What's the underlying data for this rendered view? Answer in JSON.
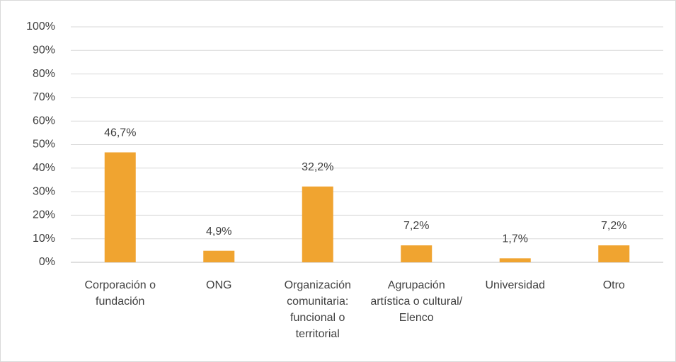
{
  "chart_data": {
    "type": "bar",
    "categories": [
      "Corporación o fundación",
      "ONG",
      "Organización comunitaria: funcional o territorial",
      "Agrupación artística o cultural/ Elenco",
      "Universidad",
      "Otro"
    ],
    "values": [
      46.7,
      4.9,
      32.2,
      7.2,
      1.7,
      7.2
    ],
    "value_labels": [
      "46,7%",
      "4,9%",
      "32,2%",
      "7,2%",
      "1,7%",
      "7,2%"
    ],
    "color": "#f0a430",
    "ylim": [
      0,
      100
    ],
    "yticks": [
      {
        "value": 0,
        "label": "0%"
      },
      {
        "value": 10,
        "label": "10%"
      },
      {
        "value": 20,
        "label": "20%"
      },
      {
        "value": 30,
        "label": "30%"
      },
      {
        "value": 40,
        "label": "40%"
      },
      {
        "value": 50,
        "label": "50%"
      },
      {
        "value": 60,
        "label": "60%"
      },
      {
        "value": 70,
        "label": "70%"
      },
      {
        "value": 80,
        "label": "80%"
      },
      {
        "value": 90,
        "label": "90%"
      },
      {
        "value": 100,
        "label": "100%"
      }
    ],
    "grid": true
  }
}
